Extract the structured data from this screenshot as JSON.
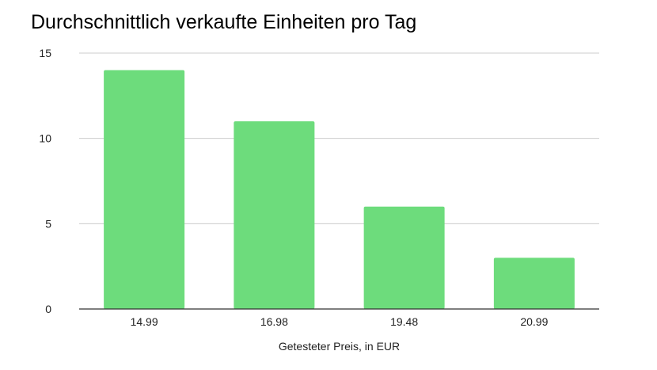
{
  "chart_data": {
    "type": "bar",
    "title": "Durchschnittlich verkaufte Einheiten pro Tag",
    "xlabel": "Getesteter Preis, in EUR",
    "ylabel": "",
    "categories": [
      "14.99",
      "16.98",
      "19.48",
      "20.99"
    ],
    "values": [
      14,
      11,
      6,
      3
    ],
    "ylim": [
      0,
      15
    ],
    "yticks": [
      0,
      5,
      10,
      15
    ],
    "grid": true,
    "bar_color": "#6ddc7c"
  }
}
